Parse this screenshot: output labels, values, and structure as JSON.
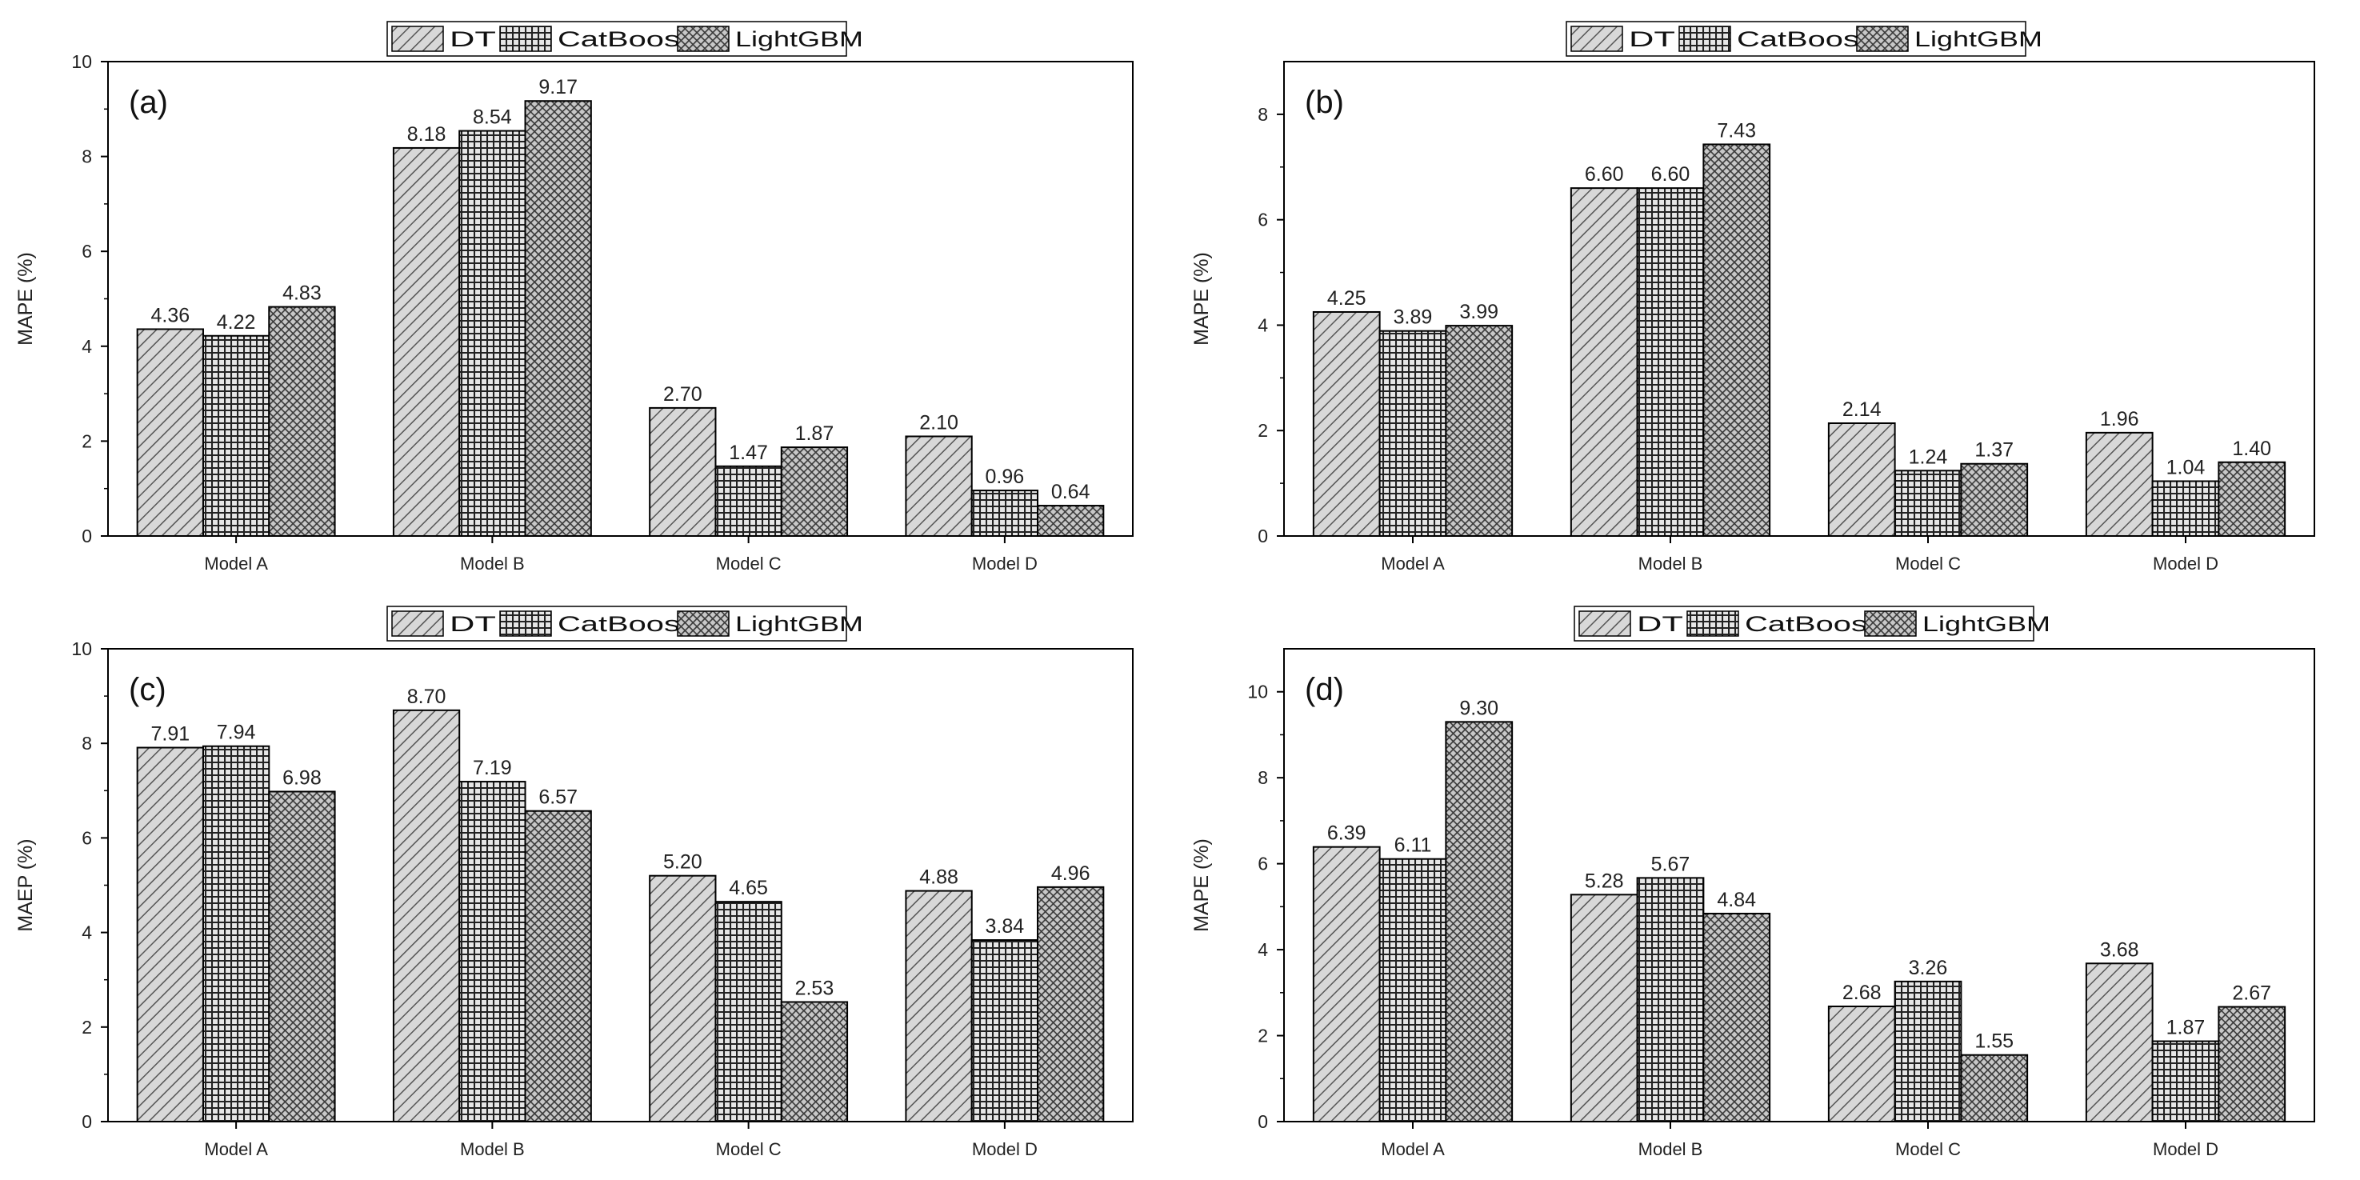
{
  "series_names": [
    "DT",
    "CatBoost",
    "LightGBM"
  ],
  "chart_data": [
    {
      "type": "bar",
      "panel_label": "(a)",
      "categories": [
        "Model A",
        "Model B",
        "Model C",
        "Model D"
      ],
      "series": [
        {
          "name": "DT",
          "values": [
            4.36,
            8.18,
            2.7,
            2.1
          ],
          "labels": [
            "4.36",
            "8.18",
            "2.70",
            "2.10"
          ]
        },
        {
          "name": "CatBoost",
          "values": [
            4.22,
            8.54,
            1.47,
            0.96
          ],
          "labels": [
            "4.22",
            "8.54",
            "1.47",
            "0.96"
          ]
        },
        {
          "name": "LightGBM",
          "values": [
            4.83,
            9.17,
            1.87,
            0.64
          ],
          "labels": [
            "4.83",
            "9.17",
            "1.87",
            "0.64"
          ]
        }
      ],
      "ylabel": "MAPE (%)",
      "xlabel": "",
      "ylim": [
        0,
        10
      ],
      "yticks": [
        0,
        2,
        4,
        6,
        8,
        10
      ],
      "legend_position": "top-center"
    },
    {
      "type": "bar",
      "panel_label": "(b)",
      "categories": [
        "Model A",
        "Model B",
        "Model C",
        "Model D"
      ],
      "series": [
        {
          "name": "DT",
          "values": [
            4.25,
            6.6,
            2.14,
            1.96
          ],
          "labels": [
            "4.25",
            "6.60",
            "2.14",
            "1.96"
          ]
        },
        {
          "name": "CatBoost",
          "values": [
            3.89,
            6.6,
            1.24,
            1.04
          ],
          "labels": [
            "3.89",
            "6.60",
            "1.24",
            "1.04"
          ]
        },
        {
          "name": "LightGBM",
          "values": [
            3.99,
            7.43,
            1.37,
            1.4
          ],
          "labels": [
            "3.99",
            "7.43",
            "1.37",
            "1.40"
          ]
        }
      ],
      "ylabel": "MAPE (%)",
      "xlabel": "",
      "ylim": [
        0,
        9
      ],
      "yticks": [
        0,
        2,
        4,
        6,
        8
      ],
      "legend_position": "top-center"
    },
    {
      "type": "bar",
      "panel_label": "(c)",
      "categories": [
        "Model A",
        "Model B",
        "Model C",
        "Model D"
      ],
      "series": [
        {
          "name": "DT",
          "values": [
            7.91,
            8.7,
            5.2,
            4.88
          ],
          "labels": [
            "7.91",
            "8.70",
            "5.20",
            "4.88"
          ]
        },
        {
          "name": "CatBoost",
          "values": [
            7.94,
            7.19,
            4.65,
            3.84
          ],
          "labels": [
            "7.94",
            "7.19",
            "4.65",
            "3.84"
          ]
        },
        {
          "name": "LightGBM",
          "values": [
            6.98,
            6.57,
            2.53,
            4.96
          ],
          "labels": [
            "6.98",
            "6.57",
            "2.53",
            "4.96"
          ]
        }
      ],
      "ylabel": "MAEP (%)",
      "xlabel": "",
      "ylim": [
        0,
        10
      ],
      "yticks": [
        0,
        2,
        4,
        6,
        8,
        10
      ],
      "legend_position": "top-center"
    },
    {
      "type": "bar",
      "panel_label": "(d)",
      "categories": [
        "Model A",
        "Model B",
        "Model C",
        "Model D"
      ],
      "series": [
        {
          "name": "DT",
          "values": [
            6.39,
            5.28,
            2.68,
            3.68
          ],
          "labels": [
            "6.39",
            "5.28",
            "2.68",
            "3.68"
          ]
        },
        {
          "name": "CatBoost",
          "values": [
            6.11,
            5.67,
            3.26,
            1.87
          ],
          "labels": [
            "6.11",
            "5.67",
            "3.26",
            "1.87"
          ]
        },
        {
          "name": "LightGBM",
          "values": [
            9.3,
            4.84,
            1.55,
            2.67
          ],
          "labels": [
            "9.30",
            "4.84",
            "1.55",
            "2.67"
          ]
        }
      ],
      "ylabel": "MAPE (%)",
      "xlabel": "",
      "ylim": [
        0,
        11
      ],
      "yticks": [
        0,
        2,
        4,
        6,
        8,
        10
      ],
      "legend_position": "top-center"
    }
  ]
}
